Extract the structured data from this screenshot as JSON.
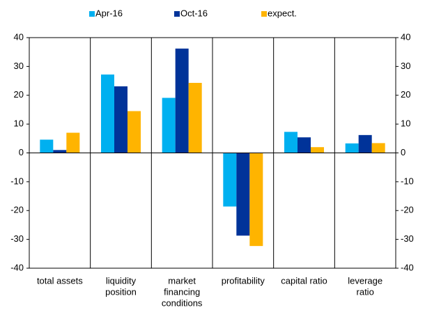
{
  "chart_data": {
    "type": "bar",
    "categories": [
      [
        "total assets"
      ],
      [
        "liquidity",
        "position"
      ],
      [
        "market",
        "financing",
        "conditions"
      ],
      [
        "profitability"
      ],
      [
        "capital ratio"
      ],
      [
        "leverage",
        "ratio"
      ]
    ],
    "series": [
      {
        "name": "Apr-16",
        "color": "#00b0f0",
        "values": [
          4.6,
          27.2,
          19.1,
          -18.6,
          7.3,
          3.3
        ]
      },
      {
        "name": "Oct-16",
        "color": "#003399",
        "values": [
          1.0,
          23.1,
          36.2,
          -28.7,
          5.4,
          6.2
        ]
      },
      {
        "name": "expect.",
        "color": "#ffb400",
        "values": [
          7.0,
          14.5,
          24.3,
          -32.3,
          2.0,
          3.4
        ]
      }
    ],
    "ylim": [
      -40,
      40
    ],
    "yticks": [
      -40,
      -30,
      -20,
      -10,
      0,
      10,
      20,
      30,
      40
    ],
    "y2lim": [
      -40,
      40
    ],
    "y2ticks": [
      -40,
      -30,
      -20,
      -10,
      0,
      10,
      20,
      30,
      40
    ],
    "legend": "top"
  }
}
